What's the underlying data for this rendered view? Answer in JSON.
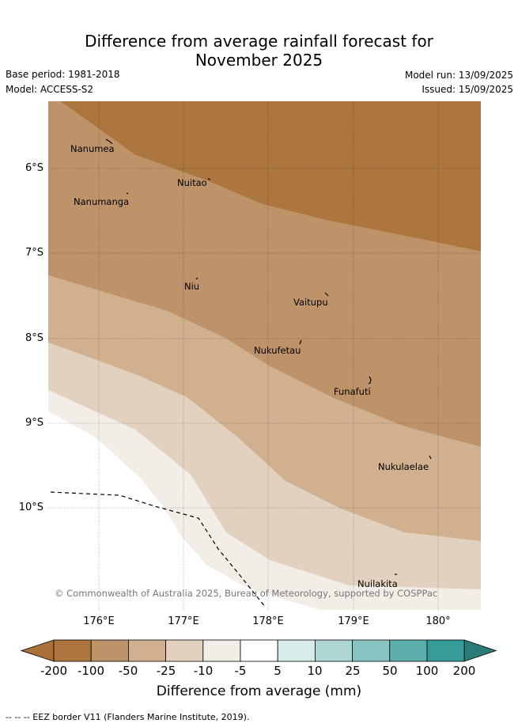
{
  "title_line1": "Difference from average rainfall forecast for",
  "title_line2": "November 2025",
  "base_period": "Base period: 1981-2018",
  "model": "Model: ACCESS-S2",
  "model_run": "Model run: 13/09/2025",
  "issued": "Issued: 15/09/2025",
  "copyright": "© Commonwealth of Australia 2025, Bureau of Meteorology, supported by COSPPac",
  "lat_labels": [
    "6°S",
    "7°S",
    "8°S",
    "9°S",
    "10°S"
  ],
  "lon_labels": [
    "176°E",
    "177°E",
    "178°E",
    "179°E",
    "180°"
  ],
  "places": [
    "Nanumea",
    "Nuitao",
    "Nanumanga",
    "Niu",
    "Vaitupu",
    "Nukufetau",
    "Funafuti",
    "Nukulaelae",
    "Nuilakita"
  ],
  "colorbar": {
    "tick_labels": [
      "-200",
      "-100",
      "-50",
      "-25",
      "-10",
      "-5",
      "5",
      "10",
      "25",
      "50",
      "100",
      "200"
    ],
    "colors": [
      "#a9703a",
      "#ad763e",
      "#bf936a",
      "#d1b08f",
      "#e3d1bf",
      "#f2ede6",
      "#ffffff",
      "#d6ebea",
      "#afd6d5",
      "#88c4c2",
      "#5dafad",
      "#369c9a",
      "#2b7b79"
    ],
    "title": "Difference from average (mm)"
  },
  "footnote": "--  --  -- EEZ border V11 (Flanders Marine Institute, 2019)."
}
